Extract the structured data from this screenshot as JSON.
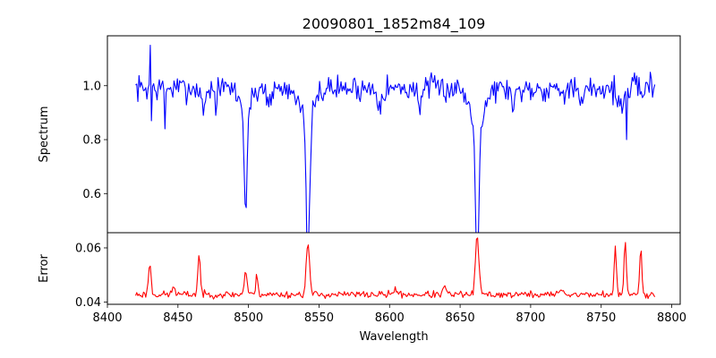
{
  "chart_data": {
    "title": "20090801_1852m84_109",
    "xlabel": "Wavelength",
    "xlim": [
      8400,
      8806
    ],
    "xticks": [
      8400,
      8450,
      8500,
      8550,
      8600,
      8650,
      8700,
      8750,
      8800
    ],
    "x_start": 8420,
    "x_end": 8788,
    "x_step": 0.8,
    "panels": [
      {
        "id": "spectrum",
        "type": "line",
        "ylabel": "Spectrum",
        "ylim": [
          0.455,
          1.185
        ],
        "yticks": [
          0.6,
          0.8,
          1.0
        ],
        "ytick_labels": [
          "0.6",
          "0.8",
          "1.0"
        ],
        "color": "#0000ff",
        "base": 0.99,
        "noise": 0.045,
        "noise_seed": 7,
        "spikes": [
          {
            "x": 8430,
            "value": 1.15
          },
          {
            "x": 8430.8,
            "value": 0.87
          },
          {
            "x": 8441,
            "value": 0.84
          },
          {
            "x": 8477,
            "value": 0.89
          },
          {
            "x": 8768,
            "value": 0.8
          },
          {
            "x": 8785,
            "value": 1.05
          }
        ],
        "features": [
          {
            "center": 8498.0,
            "depth": 0.37,
            "width": 0.9,
            "wing_depth": 0.1,
            "wing_width": 3.5
          },
          {
            "center": 8542.1,
            "depth": 0.51,
            "width": 1.2,
            "wing_depth": 0.14,
            "wing_width": 4.0
          },
          {
            "center": 8662.1,
            "depth": 0.51,
            "width": 1.1,
            "wing_depth": 0.15,
            "wing_width": 4.5
          },
          {
            "center": 8468.0,
            "depth": 0.07,
            "width": 1.5
          },
          {
            "center": 8515.0,
            "depth": 0.05,
            "width": 1.5
          },
          {
            "center": 8593.0,
            "depth": 0.05,
            "width": 1.5
          },
          {
            "center": 8621.0,
            "depth": 0.05,
            "width": 1.5
          },
          {
            "center": 8688.0,
            "depth": 0.06,
            "width": 1.5
          },
          {
            "center": 8736.0,
            "depth": 0.06,
            "width": 2.0
          },
          {
            "center": 8764.0,
            "depth": 0.07,
            "width": 2.0
          }
        ]
      },
      {
        "id": "error",
        "type": "line",
        "ylabel": "Error",
        "ylim": [
          0.0392,
          0.0656
        ],
        "yticks": [
          0.04,
          0.06
        ],
        "ytick_labels": [
          "0.04",
          "0.06"
        ],
        "color": "#ff0000",
        "base": 0.0428,
        "noise": 0.0012,
        "noise_seed": 23,
        "features": [
          {
            "center": 8430.0,
            "height": 0.0115,
            "width": 0.9
          },
          {
            "center": 8465.0,
            "height": 0.0145,
            "width": 0.9
          },
          {
            "center": 8498.0,
            "height": 0.0085,
            "width": 1.0
          },
          {
            "center": 8506.0,
            "height": 0.007,
            "width": 0.8
          },
          {
            "center": 8542.1,
            "height": 0.0185,
            "width": 1.2
          },
          {
            "center": 8662.1,
            "height": 0.0215,
            "width": 1.2
          },
          {
            "center": 8760.0,
            "height": 0.0165,
            "width": 0.8
          },
          {
            "center": 8767.0,
            "height": 0.019,
            "width": 0.8
          },
          {
            "center": 8778.0,
            "height": 0.0175,
            "width": 0.8
          },
          {
            "center": 8447.0,
            "height": 0.003,
            "width": 1.0
          },
          {
            "center": 8604.0,
            "height": 0.0025,
            "width": 1.0
          },
          {
            "center": 8639.0,
            "height": 0.003,
            "width": 1.0
          },
          {
            "center": 8722.0,
            "height": 0.0025,
            "width": 1.0
          }
        ]
      }
    ]
  }
}
